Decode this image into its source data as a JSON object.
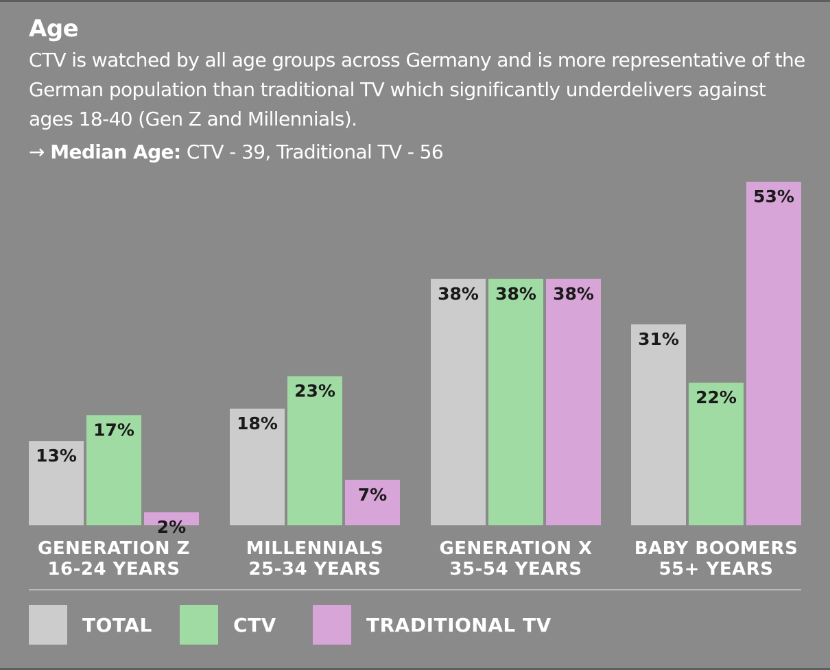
{
  "header": {
    "title": "Age",
    "subtitle": "CTV is watched by all age groups across Germany and is more representative of the German population than traditional TV which significantly underdelivers against ages 18-40 (Gen Z and Millennials).",
    "median_arrow": "→",
    "median_label": "Median Age:",
    "median_value": "CTV - 39, Traditional TV - 56"
  },
  "colors": {
    "background": "#8a8a8a",
    "total": "#cccccc",
    "ctv": "#9fdba3",
    "traditional_tv": "#d8a5d8"
  },
  "chart_data": {
    "type": "bar",
    "title": "Age",
    "categories": [
      [
        "GENERATION Z",
        "16-24 YEARS"
      ],
      [
        "MILLENNIALS",
        "25-34 YEARS"
      ],
      [
        "GENERATION X",
        "35-54 YEARS"
      ],
      [
        "BABY BOOMERS",
        "55+ YEARS"
      ]
    ],
    "series": [
      {
        "name": "TOTAL",
        "color": "#cccccc",
        "values": [
          13,
          18,
          38,
          31
        ]
      },
      {
        "name": "CTV",
        "color": "#9fdba3",
        "values": [
          17,
          23,
          38,
          22
        ]
      },
      {
        "name": "TRADITIONAL TV",
        "color": "#d8a5d8",
        "values": [
          2,
          7,
          38,
          53
        ]
      }
    ],
    "value_suffix": "%",
    "ylim": [
      0,
      53
    ],
    "grid": false,
    "legend_position": "bottom"
  },
  "legend": [
    {
      "label": "TOTAL",
      "color": "#cccccc"
    },
    {
      "label": "CTV",
      "color": "#9fdba3"
    },
    {
      "label": "TRADITIONAL TV",
      "color": "#d8a5d8"
    }
  ]
}
